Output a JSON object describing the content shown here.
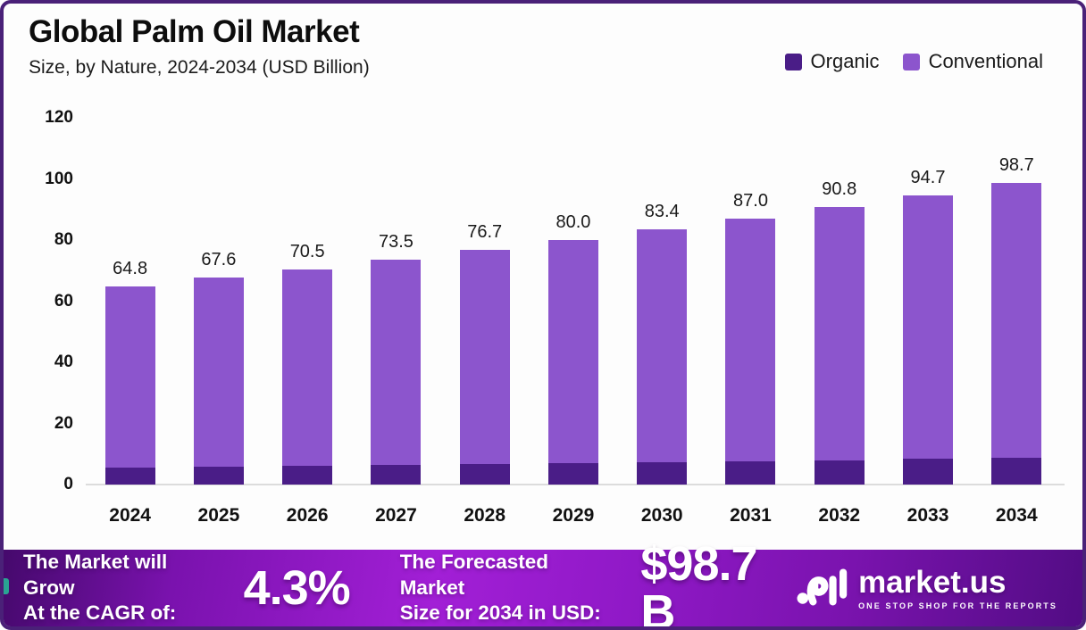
{
  "header": {
    "title": "Global Palm Oil Market",
    "subtitle": "Size, by Nature, 2024-2034 (USD Billion)"
  },
  "legend": {
    "items": [
      {
        "label": "Organic",
        "color": "#4A1D87"
      },
      {
        "label": "Conventional",
        "color": "#8C55CD"
      }
    ]
  },
  "chart_data": {
    "type": "bar",
    "stacked": true,
    "title": "Global Palm Oil Market",
    "subtitle": "Size, by Nature, 2024-2034 (USD Billion)",
    "unit": "USD Billion",
    "categories": [
      "2024",
      "2025",
      "2026",
      "2027",
      "2028",
      "2029",
      "2030",
      "2031",
      "2032",
      "2033",
      "2034"
    ],
    "totals": [
      64.8,
      67.6,
      70.5,
      73.5,
      76.7,
      80.0,
      83.4,
      87.0,
      90.8,
      94.7,
      98.7
    ],
    "total_labels": [
      "64.8",
      "67.6",
      "70.5",
      "73.5",
      "76.7",
      "80.0",
      "83.4",
      "87.0",
      "90.8",
      "94.7",
      "98.7"
    ],
    "series": [
      {
        "name": "Organic",
        "color": "#4A1D87",
        "values": [
          5.5,
          5.8,
          6.0,
          6.3,
          6.6,
          6.9,
          7.2,
          7.6,
          8.0,
          8.4,
          8.8
        ],
        "note": "segment heights estimated from pixels; only totals are labeled"
      },
      {
        "name": "Conventional",
        "color": "#8C55CD",
        "values": [
          59.3,
          61.8,
          64.5,
          67.2,
          70.1,
          73.1,
          76.2,
          79.4,
          82.8,
          86.3,
          89.9
        ],
        "note": "total minus organic estimate"
      }
    ],
    "ylim": [
      0,
      120
    ],
    "yticks": [
      0,
      20,
      40,
      60,
      80,
      100,
      120
    ],
    "grid": false,
    "legend_position": "top-right"
  },
  "footer": {
    "growth_label_line1": "The Market will Grow",
    "growth_label_line2": "At the CAGR of:",
    "cagr_value": "4.3%",
    "forecast_label_line1": "The Forecasted Market",
    "forecast_label_line2": "Size for 2034 in USD:",
    "forecast_value": "$98.7 B",
    "brand_name": "market.us",
    "brand_tagline": "ONE STOP SHOP FOR THE REPORTS"
  },
  "colors": {
    "organic": "#4A1D87",
    "conventional": "#8C55CD",
    "frame_border": "#4A2178",
    "banner_left": "#45096C",
    "banner_mid": "#A21FD6",
    "banner_right": "#520C84",
    "axis_line": "#DCDCDC",
    "teal_accent": "#2AA493",
    "value_label_text": "#1A1A1A"
  }
}
